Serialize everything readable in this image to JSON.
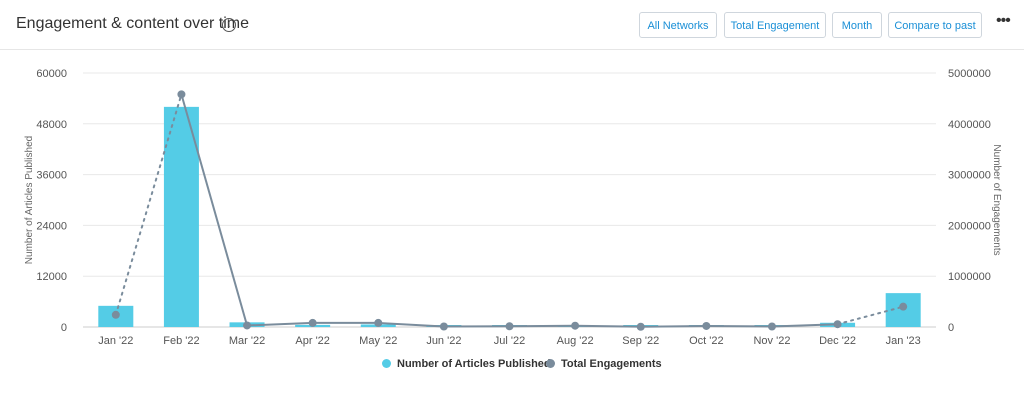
{
  "header": {
    "title": "Engagement & content over time",
    "info_icon": "info-icon",
    "buttons": {
      "networks": "All Networks",
      "metric": "Total Engagement",
      "period": "Month",
      "compare": "Compare to past"
    },
    "more_icon": "more-horizontal-icon",
    "more_label": "•••"
  },
  "colors": {
    "bars": "#54cce6",
    "line": "#7a8c9c",
    "accent": "#1a8fd6"
  },
  "chart_data": {
    "type": "bar",
    "categories": [
      "Jan '22",
      "Feb '22",
      "Mar '22",
      "Apr '22",
      "May '22",
      "Jun '22",
      "Jul '22",
      "Aug '22",
      "Sep '22",
      "Oct '22",
      "Nov '22",
      "Dec '22",
      "Jan '23"
    ],
    "series": [
      {
        "name": "Number of Articles Published",
        "type": "bar",
        "axis": "left",
        "values": [
          5000,
          52000,
          1100,
          500,
          600,
          150,
          200,
          300,
          150,
          400,
          250,
          1000,
          8000
        ]
      },
      {
        "name": "Total Engagements",
        "type": "line",
        "axis": "right",
        "values": [
          240000,
          4580000,
          30000,
          80000,
          80000,
          10000,
          15000,
          25000,
          5000,
          20000,
          10000,
          55000,
          400000
        ],
        "dotted_segments": [
          0,
          11
        ]
      }
    ],
    "ylabel_left": "Number of Articles Published",
    "ylabel_right": "Number of Engagements",
    "ylim_left": [
      0,
      60000
    ],
    "ylim_right": [
      0,
      5000000
    ],
    "yticks_left": [
      "0",
      "12000",
      "24000",
      "36000",
      "48000",
      "60000"
    ],
    "yticks_right": [
      "0",
      "1000000",
      "2000000",
      "3000000",
      "4000000",
      "5000000"
    ],
    "grid": true,
    "legend_position": "bottom"
  }
}
